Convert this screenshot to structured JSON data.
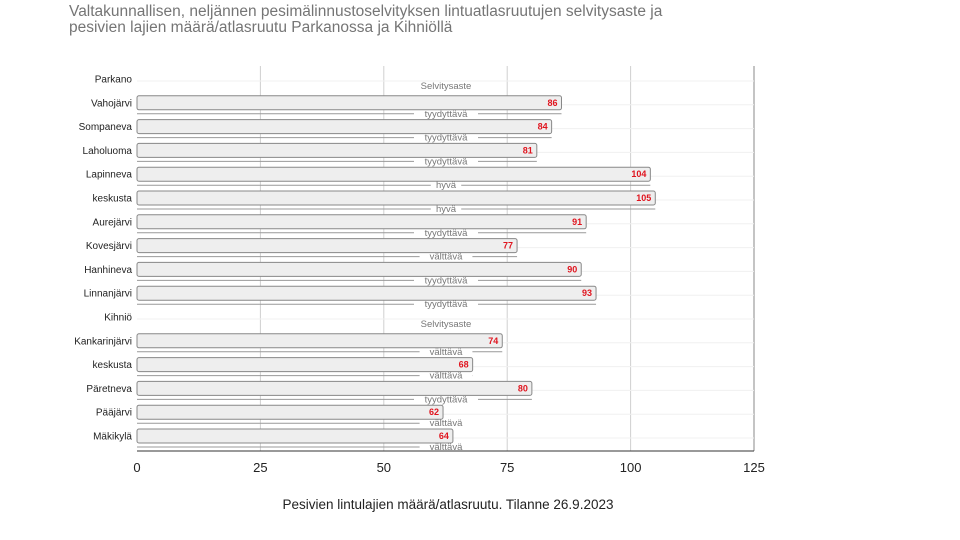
{
  "title": {
    "line1": "Valtakunnallisen, neljännen pesimälinnustoselvityksen lintuatlasruutujen selvitysaste ja",
    "line2": "pesivien lajien määrä/atlasruutu Parkanossa ja Kihniöllä"
  },
  "chart_data": {
    "type": "bar",
    "orientation": "horizontal",
    "title": "Valtakunnallisen, neljännen pesimälinnustoselvityksen lintuatlasruutujen selvitysaste ja pesivien lajien määrä/atlasruutu Parkanossa ja Kihniöllä",
    "xlabel": "Pesivien lintulajien määrä/atlasruutu. Tilanne 26.9.2023",
    "ylabel": "",
    "xlim": [
      0,
      125
    ],
    "xticks": [
      0,
      25,
      50,
      75,
      100,
      125
    ],
    "grid": true,
    "bar_color": "#eeeeee",
    "bar_stroke": "#888888",
    "value_label_color": "#e0141e",
    "categories": [
      "Parkano",
      "Vahojärvi",
      "Sompaneva",
      "Laholuoma",
      "Lapinneva",
      "keskusta",
      "Aurejärvi",
      "Kovesjärvi",
      "Hanhineva",
      "Linnanjärvi",
      "Kihniö",
      "Kankarinjärvi",
      "keskusta",
      "Päretneva",
      "Pääjärvi",
      "Mäkikylä"
    ],
    "values": [
      null,
      86,
      84,
      81,
      104,
      105,
      91,
      77,
      90,
      93,
      null,
      74,
      68,
      80,
      62,
      64
    ],
    "annotations": [
      "Selvitysaste",
      "tyydyttävä",
      "tyydyttävä",
      "tyydyttävä",
      "hyvä",
      "hyvä",
      "tyydyttävä",
      "välttävä",
      "tyydyttävä",
      "tyydyttävä",
      "Selvitysaste",
      "välttävä",
      "välttävä",
      "tyydyttävä",
      "välttävä",
      "välttävä"
    ]
  }
}
